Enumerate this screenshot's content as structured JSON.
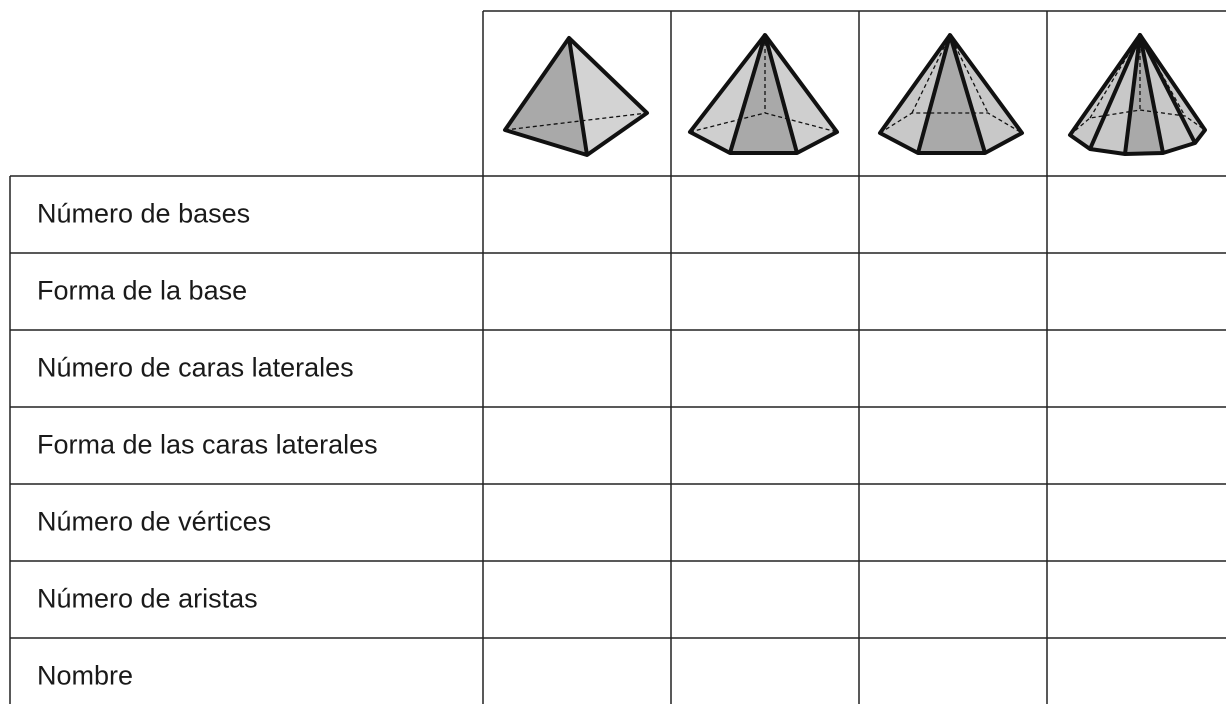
{
  "table": {
    "rows": [
      "Número de bases",
      "Forma de la base",
      "Número de caras laterales",
      "Forma de las caras laterales",
      "Número de vértices",
      "Número de aristas",
      "Nombre"
    ]
  }
}
